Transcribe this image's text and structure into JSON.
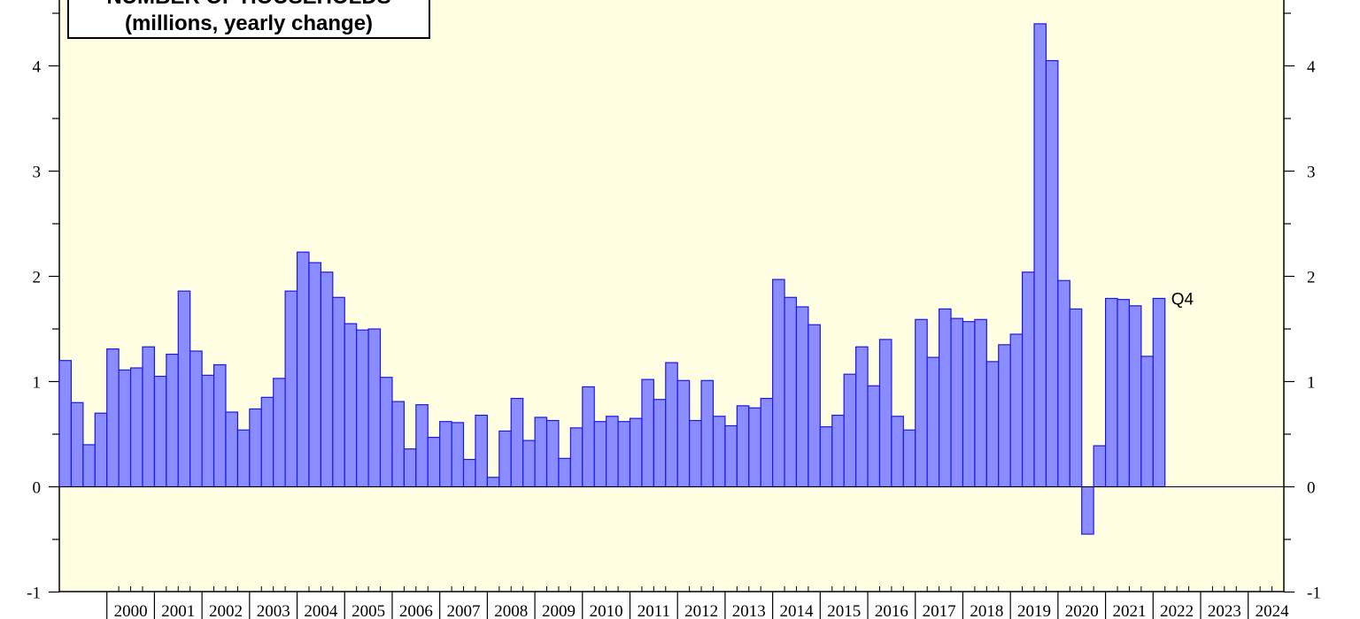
{
  "chart_data": {
    "type": "bar",
    "title_line1": "NUMBER OF HOUSEHOLDS",
    "title_line2": "(millions, yearly change)",
    "xlabel": "",
    "ylabel": "",
    "ylim": [
      -1,
      4.5
    ],
    "yticks": [
      -1,
      0,
      1,
      2,
      3,
      4
    ],
    "years": [
      "2000",
      "2001",
      "2002",
      "2003",
      "2004",
      "2005",
      "2006",
      "2007",
      "2008",
      "2009",
      "2010",
      "2011",
      "2012",
      "2013",
      "2014",
      "2015",
      "2016",
      "2017",
      "2018",
      "2019",
      "2020",
      "2021",
      "2022",
      "2023",
      "2024"
    ],
    "x_start": 1999.0,
    "x_end": 2024.75,
    "first_bar_x": 1999.0,
    "quarters_per_year": 4,
    "values": [
      1.2,
      0.8,
      0.4,
      0.7,
      1.31,
      1.11,
      1.13,
      1.33,
      1.05,
      1.26,
      1.86,
      1.29,
      1.06,
      1.16,
      0.71,
      0.54,
      0.74,
      0.85,
      1.03,
      1.86,
      2.23,
      2.13,
      2.04,
      1.8,
      1.55,
      1.49,
      1.5,
      1.04,
      0.81,
      0.36,
      0.78,
      0.47,
      0.62,
      0.61,
      0.26,
      0.68,
      0.09,
      0.53,
      0.84,
      0.44,
      0.66,
      0.63,
      0.27,
      0.56,
      0.95,
      0.62,
      0.67,
      0.62,
      0.65,
      1.02,
      0.83,
      1.18,
      1.01,
      0.63,
      1.01,
      0.67,
      0.58,
      0.77,
      0.75,
      0.84,
      1.97,
      1.8,
      1.71,
      1.54,
      0.57,
      0.68,
      1.07,
      1.33,
      0.96,
      1.4,
      0.67,
      0.54,
      1.59,
      1.23,
      1.69,
      1.6,
      1.57,
      1.59,
      1.19,
      1.35,
      1.45,
      2.04,
      4.4,
      4.05,
      1.96,
      1.69,
      -0.45,
      0.39,
      1.79,
      1.78,
      1.72,
      1.24,
      1.79
    ],
    "annotation": "Q4",
    "grid": false,
    "zero_line": true
  }
}
